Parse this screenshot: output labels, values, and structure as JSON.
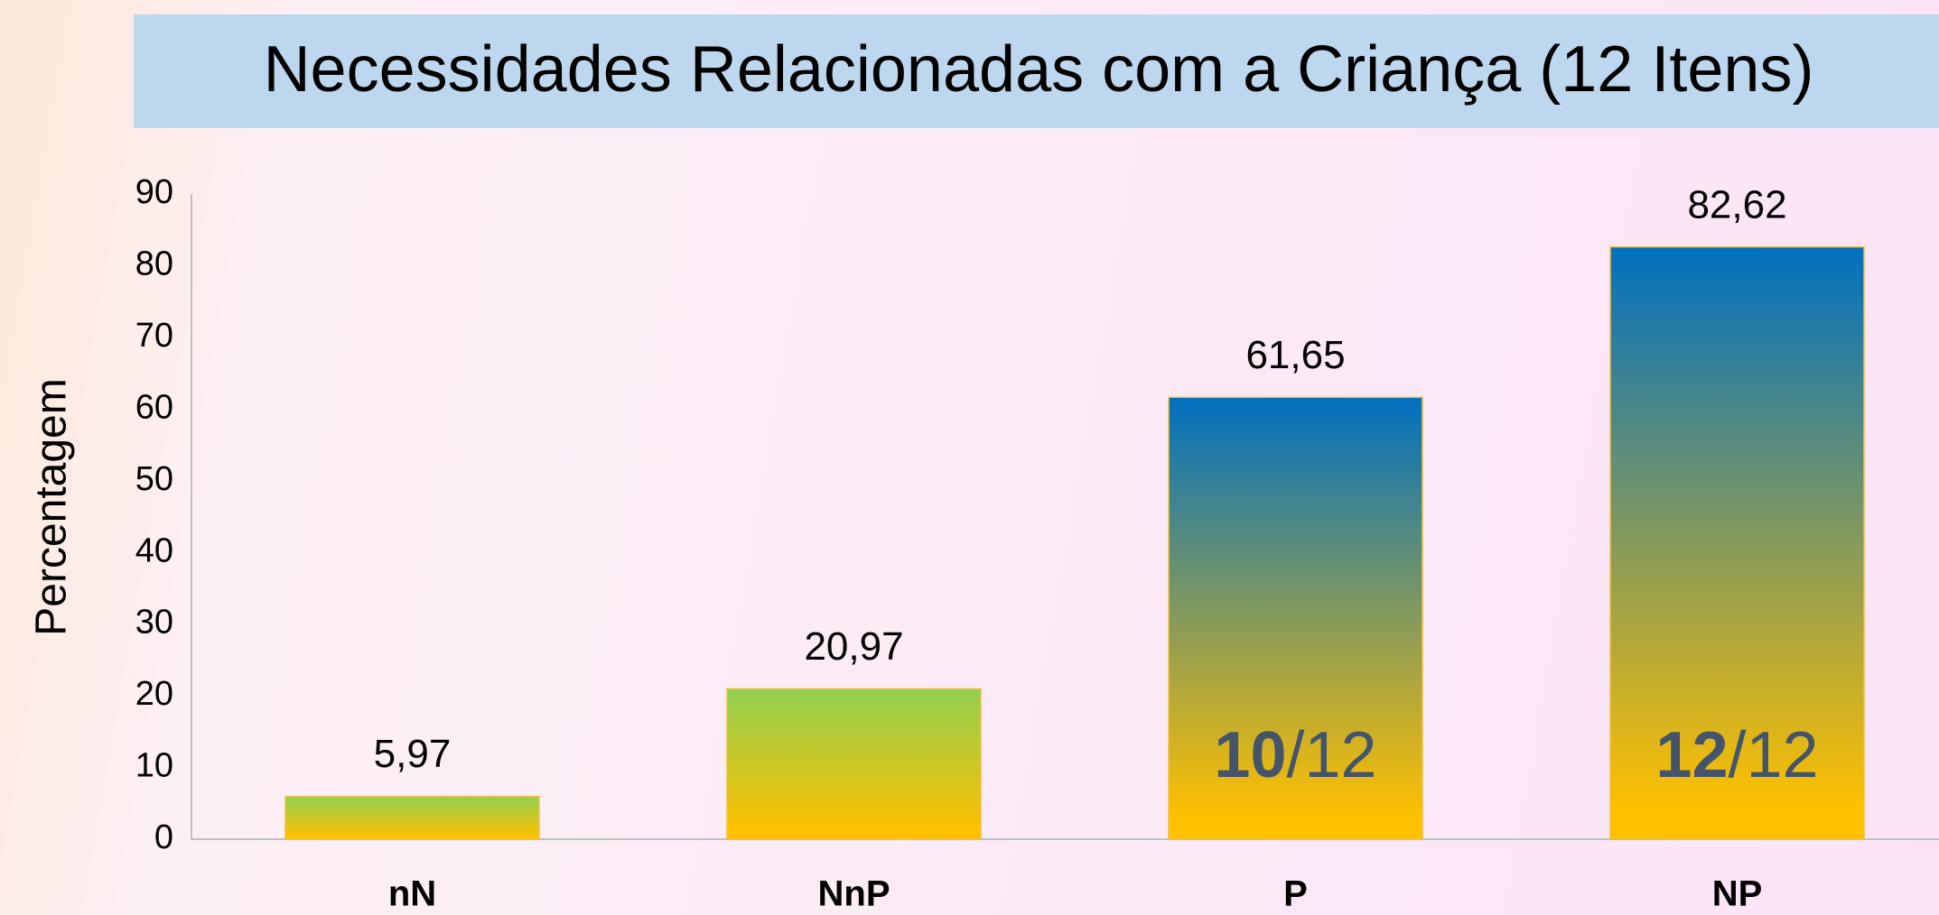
{
  "chart_data": {
    "type": "bar",
    "title": "Necessidades Relacionadas com a Criança (12 Itens)",
    "y_label": "Percentagem",
    "categories": [
      "nN",
      "NnP",
      "P",
      "NP"
    ],
    "values": [
      5.97,
      20.97,
      61.65,
      82.62
    ],
    "value_labels": [
      "5,97",
      "20,97",
      "61,65",
      "82,62"
    ],
    "gradients": [
      [
        "#92d050",
        "#ffc000"
      ],
      [
        "#92d050",
        "#ffc000"
      ],
      [
        "#0070c0",
        "#ffc000"
      ],
      [
        "#0070c0",
        "#ffc000"
      ]
    ],
    "annotations": [
      null,
      null,
      {
        "bold": "10",
        "text": "/12"
      },
      {
        "bold": "12",
        "text": "/12"
      }
    ],
    "ylim": [
      0,
      90
    ],
    "yticks": [
      0,
      10,
      20,
      30,
      40,
      50,
      60,
      70,
      80,
      90
    ],
    "grid": false
  }
}
